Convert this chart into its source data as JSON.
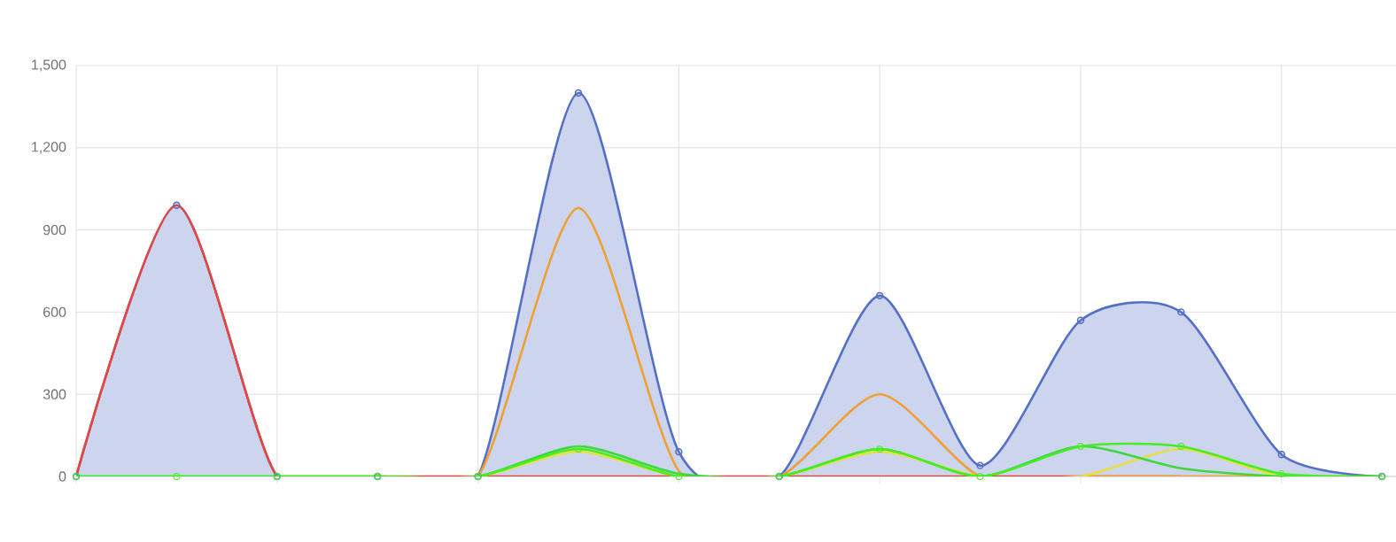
{
  "chart_data": {
    "type": "line",
    "categories": [
      null,
      null,
      null,
      null,
      null,
      null,
      null,
      null,
      null,
      null,
      null,
      null,
      null,
      null
    ],
    "ylim": [
      0,
      1500
    ],
    "yticks": [
      0,
      {
        "value": 300,
        "label": "300"
      },
      {
        "value": 600,
        "label": "600"
      },
      {
        "value": 900,
        "label": "900"
      },
      {
        "value": 1200,
        "label": "1,200"
      },
      {
        "value": 1500,
        "label": "1,500"
      }
    ],
    "grid": true,
    "line_style": "solid",
    "series": [
      {
        "type": "area",
        "color": "#5470c6",
        "marker": "circle",
        "values": [
          0,
          990,
          0,
          0,
          0,
          1400,
          90,
          0,
          660,
          40,
          570,
          600,
          80,
          0
        ]
      },
      {
        "color": "#e8453c",
        "marker": "none",
        "values": [
          0,
          990,
          0,
          0,
          0,
          0,
          0,
          0,
          0,
          0,
          0,
          0,
          null,
          null
        ]
      },
      {
        "color": "#f0a030",
        "marker": "none",
        "values": [
          null,
          null,
          0,
          0,
          0,
          980,
          20,
          0,
          300,
          0,
          0,
          0,
          0,
          0
        ]
      },
      {
        "color": "#e6e040",
        "marker": "none",
        "values": [
          null,
          null,
          null,
          0,
          0,
          90,
          0,
          0,
          90,
          0,
          0,
          100,
          0,
          0
        ]
      },
      {
        "color": "#3cd83c",
        "marker": "none",
        "values": [
          0,
          0,
          0,
          0,
          0,
          110,
          10,
          0,
          100,
          0,
          110,
          30,
          0,
          0
        ]
      },
      {
        "color": "#44ee22",
        "marker": "circle",
        "values": [
          0,
          0,
          0,
          0,
          0,
          100,
          0,
          0,
          100,
          0,
          110,
          110,
          10,
          0
        ]
      }
    ]
  }
}
